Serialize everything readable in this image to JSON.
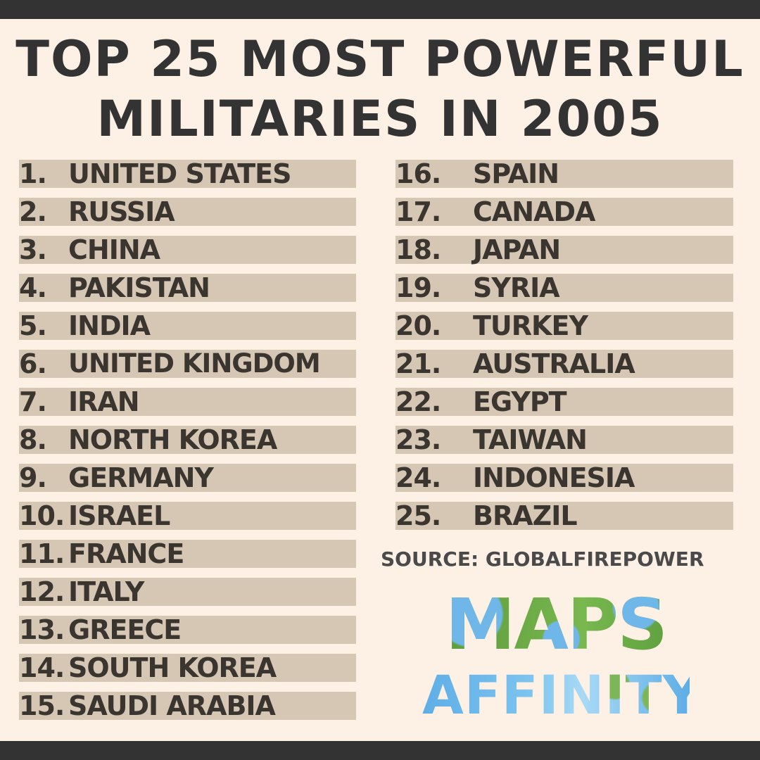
{
  "title": {
    "line1": "TOP 25 MOST POWERFUL",
    "line2": "MILITARIES IN 2005"
  },
  "rankings_left": [
    {
      "rank": "1.",
      "country": "UNITED STATES"
    },
    {
      "rank": "2.",
      "country": "RUSSIA"
    },
    {
      "rank": "3.",
      "country": "CHINA"
    },
    {
      "rank": "4.",
      "country": "PAKISTAN"
    },
    {
      "rank": "5.",
      "country": "INDIA"
    },
    {
      "rank": "6.",
      "country": "UNITED KINGDOM"
    },
    {
      "rank": "7.",
      "country": "IRAN"
    },
    {
      "rank": "8.",
      "country": "NORTH KOREA"
    },
    {
      "rank": "9.",
      "country": "GERMANY"
    },
    {
      "rank": "10.",
      "country": "ISRAEL"
    },
    {
      "rank": "11.",
      "country": "FRANCE"
    },
    {
      "rank": "12.",
      "country": "ITALY"
    },
    {
      "rank": "13.",
      "country": "GREECE"
    },
    {
      "rank": "14.",
      "country": "SOUTH KOREA"
    },
    {
      "rank": "15.",
      "country": "SAUDI ARABIA"
    }
  ],
  "rankings_right": [
    {
      "rank": "16.",
      "country": "SPAIN"
    },
    {
      "rank": "17.",
      "country": "CANADA"
    },
    {
      "rank": "18.",
      "country": "JAPAN"
    },
    {
      "rank": "19.",
      "country": "SYRIA"
    },
    {
      "rank": "20.",
      "country": "TURKEY"
    },
    {
      "rank": "21.",
      "country": "AUSTRALIA"
    },
    {
      "rank": "22.",
      "country": "EGYPT"
    },
    {
      "rank": "23.",
      "country": "TAIWAN"
    },
    {
      "rank": "24.",
      "country": "INDONESIA"
    },
    {
      "rank": "25.",
      "country": "BRAZIL"
    }
  ],
  "source": "SOURCE: GLOBALFIREPOWER",
  "logo": {
    "line1": "MAPS",
    "line2": "AFFINITY"
  },
  "colors": {
    "background": "#fdf1e6",
    "bars": "#333333",
    "row_highlight": "#d6c7b4",
    "text": "#333333",
    "logo_green": "#6aa945",
    "logo_blue": "#6fb7e8"
  }
}
